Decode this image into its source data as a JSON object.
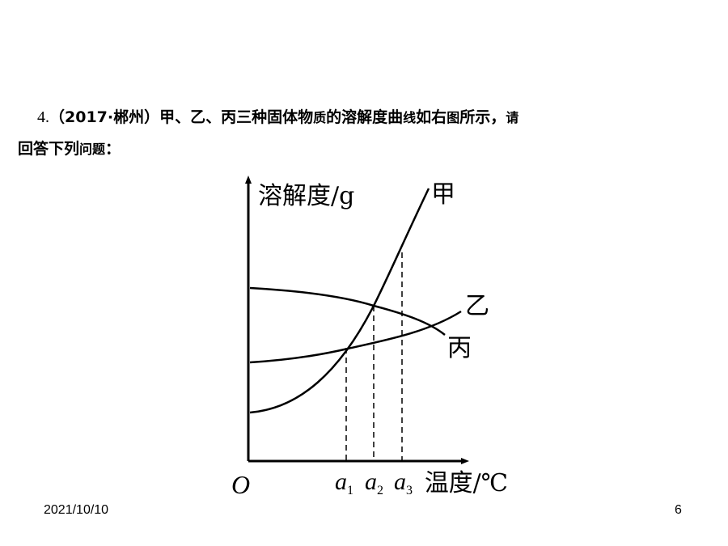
{
  "question": {
    "number": "4.",
    "source": "（2017·郴州）",
    "text_part1": "甲、乙、丙三种固体物",
    "text_small1": "质",
    "text_part2": "的溶解度曲",
    "text_small2": "线",
    "text_part3": "如右",
    "text_small3": "图",
    "text_part4": "所示，",
    "text_small4": "请",
    "text_line2a": "回答下列",
    "text_small5": "问题",
    "text_line2b": "："
  },
  "figure": {
    "y_axis_label": "溶解度/g",
    "x_axis_label": "温度/℃",
    "origin_label": "O",
    "curve_labels": {
      "jia": "甲",
      "yi": "乙",
      "bing": "丙"
    },
    "tick_labels": [
      {
        "base": "a",
        "sub": "1"
      },
      {
        "base": "a",
        "sub": "2"
      },
      {
        "base": "a",
        "sub": "3"
      }
    ]
  },
  "footer": {
    "date": "2021/10/10",
    "page": "6"
  }
}
